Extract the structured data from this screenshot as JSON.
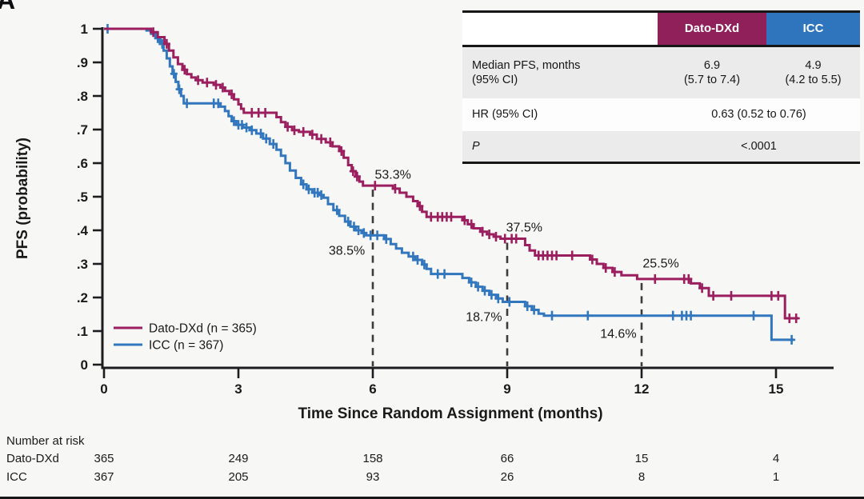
{
  "panel_label": "A",
  "colors": {
    "background": "#f7f7f6",
    "text": "#1a1a1a",
    "axis": "#1d1d1f",
    "dashed_line": "#3c3c3c",
    "dato_dxd": "#9B1E5F",
    "dato_dxd_label": "#A2215F",
    "icc": "#3277BE",
    "icc_label": "#4D8CD0",
    "table_header_dato_bg": "#8F2059",
    "table_header_icc_bg": "#2F75BD",
    "table_row_gray": "#EBEBEB",
    "table_border": "#161616"
  },
  "stats_table": {
    "header": {
      "dato": "Dato-DXd",
      "icc": "ICC"
    },
    "median_row": {
      "label_line1": "Median PFS, months",
      "label_line2": "(95% CI)",
      "dato_line1": "6.9",
      "dato_line2": "(5.7 to 7.4)",
      "icc_line1": "4.9",
      "icc_line2": "(4.2 to 5.5)"
    },
    "hr_row": {
      "label": "HR (95% CI)",
      "value": "0.63 (0.52 to 0.76)"
    },
    "p_row": {
      "label": "P",
      "value": "<.0001"
    }
  },
  "chart_data": {
    "type": "line",
    "subtype": "kaplan-meier-step",
    "title": "",
    "xlabel": "Time Since Random Assignment (months)",
    "ylabel": "PFS (probability)",
    "x_ticks": [
      0,
      3,
      6,
      9,
      12,
      15
    ],
    "y_tick_values": [
      0,
      0.1,
      0.2,
      0.3,
      0.4,
      0.5,
      0.6,
      0.7,
      0.8,
      0.9,
      1
    ],
    "y_tick_labels": [
      "0",
      ".1",
      ".2",
      ".3",
      ".4",
      ".5",
      ".6",
      ".7",
      ".8",
      ".9",
      "1"
    ],
    "xlim": [
      0,
      15.8
    ],
    "ylim": [
      0,
      1
    ],
    "grid": false,
    "legend_position": "lower-left",
    "series": [
      {
        "name": "Dato-DXd (n = 365)",
        "color_key": "dato_dxd",
        "label_color_key": "dato_dxd_label",
        "end_month": 15.5,
        "steps": [
          [
            0,
            1.0
          ],
          [
            1.05,
            0.99
          ],
          [
            1.2,
            0.975
          ],
          [
            1.35,
            0.955
          ],
          [
            1.45,
            0.935
          ],
          [
            1.55,
            0.915
          ],
          [
            1.65,
            0.895
          ],
          [
            1.75,
            0.878
          ],
          [
            1.85,
            0.865
          ],
          [
            1.95,
            0.855
          ],
          [
            2.05,
            0.847
          ],
          [
            2.2,
            0.84
          ],
          [
            2.45,
            0.833
          ],
          [
            2.6,
            0.825
          ],
          [
            2.7,
            0.815
          ],
          [
            2.8,
            0.805
          ],
          [
            2.9,
            0.79
          ],
          [
            3.0,
            0.775
          ],
          [
            3.06,
            0.762
          ],
          [
            3.12,
            0.75
          ],
          [
            3.85,
            0.737
          ],
          [
            3.95,
            0.722
          ],
          [
            4.05,
            0.708
          ],
          [
            4.2,
            0.698
          ],
          [
            4.35,
            0.693
          ],
          [
            4.6,
            0.685
          ],
          [
            4.75,
            0.672
          ],
          [
            4.95,
            0.662
          ],
          [
            5.1,
            0.65
          ],
          [
            5.25,
            0.636
          ],
          [
            5.35,
            0.616
          ],
          [
            5.45,
            0.594
          ],
          [
            5.53,
            0.576
          ],
          [
            5.62,
            0.56
          ],
          [
            5.7,
            0.545
          ],
          [
            5.78,
            0.533
          ],
          [
            6.45,
            0.524
          ],
          [
            6.6,
            0.512
          ],
          [
            6.75,
            0.5
          ],
          [
            6.9,
            0.487
          ],
          [
            7.0,
            0.472
          ],
          [
            7.1,
            0.455
          ],
          [
            7.2,
            0.44
          ],
          [
            8.0,
            0.43
          ],
          [
            8.12,
            0.418
          ],
          [
            8.25,
            0.406
          ],
          [
            8.4,
            0.396
          ],
          [
            8.55,
            0.388
          ],
          [
            8.7,
            0.381
          ],
          [
            8.85,
            0.375
          ],
          [
            9.4,
            0.356
          ],
          [
            9.5,
            0.34
          ],
          [
            9.62,
            0.325
          ],
          [
            10.85,
            0.313
          ],
          [
            11.0,
            0.3
          ],
          [
            11.15,
            0.288
          ],
          [
            11.35,
            0.276
          ],
          [
            11.55,
            0.266
          ],
          [
            11.9,
            0.255
          ],
          [
            13.1,
            0.242
          ],
          [
            13.3,
            0.228
          ],
          [
            13.5,
            0.205
          ],
          [
            15.2,
            0.138
          ]
        ],
        "censors": [
          [
            1.1,
            0.99
          ],
          [
            1.4,
            0.955
          ],
          [
            1.8,
            0.878
          ],
          [
            2.1,
            0.847
          ],
          [
            2.3,
            0.84
          ],
          [
            2.5,
            0.833
          ],
          [
            2.65,
            0.825
          ],
          [
            2.85,
            0.805
          ],
          [
            3.3,
            0.75
          ],
          [
            3.45,
            0.75
          ],
          [
            3.6,
            0.75
          ],
          [
            4.1,
            0.708
          ],
          [
            4.25,
            0.698
          ],
          [
            4.45,
            0.693
          ],
          [
            4.65,
            0.685
          ],
          [
            4.85,
            0.672
          ],
          [
            5.05,
            0.662
          ],
          [
            5.3,
            0.636
          ],
          [
            5.56,
            0.576
          ],
          [
            5.65,
            0.56
          ],
          [
            6.05,
            0.533
          ],
          [
            6.5,
            0.524
          ],
          [
            7.05,
            0.472
          ],
          [
            7.3,
            0.44
          ],
          [
            7.45,
            0.44
          ],
          [
            7.55,
            0.44
          ],
          [
            7.65,
            0.44
          ],
          [
            7.75,
            0.44
          ],
          [
            8.05,
            0.43
          ],
          [
            8.2,
            0.418
          ],
          [
            8.45,
            0.396
          ],
          [
            8.6,
            0.388
          ],
          [
            8.75,
            0.381
          ],
          [
            8.95,
            0.375
          ],
          [
            9.1,
            0.375
          ],
          [
            9.2,
            0.375
          ],
          [
            9.7,
            0.325
          ],
          [
            9.8,
            0.325
          ],
          [
            9.9,
            0.325
          ],
          [
            10.0,
            0.325
          ],
          [
            10.1,
            0.325
          ],
          [
            10.45,
            0.325
          ],
          [
            10.9,
            0.313
          ],
          [
            11.2,
            0.288
          ],
          [
            11.4,
            0.276
          ],
          [
            12.3,
            0.255
          ],
          [
            12.95,
            0.255
          ],
          [
            13.05,
            0.255
          ],
          [
            13.35,
            0.228
          ],
          [
            13.6,
            0.205
          ],
          [
            14.0,
            0.205
          ],
          [
            14.9,
            0.205
          ],
          [
            15.05,
            0.205
          ],
          [
            15.3,
            0.138
          ],
          [
            15.45,
            0.138
          ]
        ]
      },
      {
        "name": "ICC (n = 367)",
        "color_key": "icc",
        "label_color_key": "icc_label",
        "end_month": 15.4,
        "steps": [
          [
            0,
            1.0
          ],
          [
            0.95,
            0.995
          ],
          [
            1.05,
            0.985
          ],
          [
            1.15,
            0.972
          ],
          [
            1.25,
            0.955
          ],
          [
            1.33,
            0.935
          ],
          [
            1.4,
            0.912
          ],
          [
            1.47,
            0.888
          ],
          [
            1.53,
            0.866
          ],
          [
            1.6,
            0.842
          ],
          [
            1.66,
            0.82
          ],
          [
            1.72,
            0.8
          ],
          [
            1.78,
            0.778
          ],
          [
            2.6,
            0.768
          ],
          [
            2.7,
            0.755
          ],
          [
            2.78,
            0.74
          ],
          [
            2.85,
            0.725
          ],
          [
            2.95,
            0.714
          ],
          [
            3.1,
            0.706
          ],
          [
            3.25,
            0.698
          ],
          [
            3.4,
            0.688
          ],
          [
            3.55,
            0.673
          ],
          [
            3.7,
            0.657
          ],
          [
            3.85,
            0.64
          ],
          [
            3.95,
            0.622
          ],
          [
            4.05,
            0.6
          ],
          [
            4.15,
            0.578
          ],
          [
            4.28,
            0.556
          ],
          [
            4.4,
            0.537
          ],
          [
            4.52,
            0.522
          ],
          [
            4.65,
            0.512
          ],
          [
            4.8,
            0.505
          ],
          [
            4.9,
            0.497
          ],
          [
            5.0,
            0.478
          ],
          [
            5.12,
            0.46
          ],
          [
            5.25,
            0.443
          ],
          [
            5.38,
            0.426
          ],
          [
            5.5,
            0.411
          ],
          [
            5.62,
            0.4
          ],
          [
            5.75,
            0.392
          ],
          [
            5.85,
            0.385
          ],
          [
            6.25,
            0.374
          ],
          [
            6.4,
            0.359
          ],
          [
            6.52,
            0.346
          ],
          [
            6.65,
            0.333
          ],
          [
            6.8,
            0.322
          ],
          [
            6.95,
            0.312
          ],
          [
            7.1,
            0.298
          ],
          [
            7.2,
            0.285
          ],
          [
            7.3,
            0.27
          ],
          [
            8.0,
            0.258
          ],
          [
            8.15,
            0.245
          ],
          [
            8.3,
            0.232
          ],
          [
            8.45,
            0.22
          ],
          [
            8.6,
            0.208
          ],
          [
            8.75,
            0.197
          ],
          [
            8.9,
            0.187
          ],
          [
            9.4,
            0.174
          ],
          [
            9.55,
            0.163
          ],
          [
            9.7,
            0.152
          ],
          [
            9.82,
            0.146
          ],
          [
            14.9,
            0.074
          ]
        ],
        "censors": [
          [
            0.08,
            1.0
          ],
          [
            1.2,
            0.972
          ],
          [
            1.3,
            0.955
          ],
          [
            1.56,
            0.866
          ],
          [
            1.68,
            0.82
          ],
          [
            1.85,
            0.778
          ],
          [
            2.45,
            0.778
          ],
          [
            2.55,
            0.778
          ],
          [
            2.9,
            0.725
          ],
          [
            3.0,
            0.714
          ],
          [
            3.08,
            0.714
          ],
          [
            3.18,
            0.706
          ],
          [
            3.3,
            0.698
          ],
          [
            3.5,
            0.688
          ],
          [
            3.62,
            0.673
          ],
          [
            3.78,
            0.657
          ],
          [
            4.45,
            0.537
          ],
          [
            4.57,
            0.522
          ],
          [
            4.7,
            0.512
          ],
          [
            4.77,
            0.512
          ],
          [
            4.85,
            0.505
          ],
          [
            5.2,
            0.46
          ],
          [
            5.45,
            0.426
          ],
          [
            5.58,
            0.411
          ],
          [
            5.68,
            0.4
          ],
          [
            5.8,
            0.392
          ],
          [
            5.95,
            0.385
          ],
          [
            6.1,
            0.385
          ],
          [
            6.3,
            0.374
          ],
          [
            6.9,
            0.322
          ],
          [
            7.0,
            0.312
          ],
          [
            7.15,
            0.298
          ],
          [
            7.45,
            0.27
          ],
          [
            7.6,
            0.27
          ],
          [
            8.2,
            0.245
          ],
          [
            8.35,
            0.232
          ],
          [
            8.5,
            0.22
          ],
          [
            8.65,
            0.208
          ],
          [
            8.8,
            0.197
          ],
          [
            9.05,
            0.187
          ],
          [
            9.45,
            0.174
          ],
          [
            9.6,
            0.163
          ],
          [
            10.0,
            0.146
          ],
          [
            10.8,
            0.146
          ],
          [
            12.7,
            0.146
          ],
          [
            12.9,
            0.146
          ],
          [
            13.0,
            0.146
          ],
          [
            13.1,
            0.146
          ],
          [
            14.5,
            0.146
          ],
          [
            15.35,
            0.074
          ]
        ]
      }
    ],
    "dashed_markers": [
      {
        "month": 6,
        "top": 0.533
      },
      {
        "month": 9,
        "top": 0.375
      },
      {
        "month": 12,
        "top": 0.255
      }
    ],
    "annotations": [
      {
        "text": "53.3%",
        "series": 0,
        "month": 6.45,
        "p": 0.567
      },
      {
        "text": "37.5%",
        "series": 0,
        "month": 9.38,
        "p": 0.41
      },
      {
        "text": "25.5%",
        "series": 0,
        "month": 12.43,
        "p": 0.302
      },
      {
        "text": "38.5%",
        "series": 1,
        "month": 5.42,
        "p": 0.34
      },
      {
        "text": "18.7%",
        "series": 1,
        "month": 8.48,
        "p": 0.143
      },
      {
        "text": "14.6%",
        "series": 1,
        "month": 11.48,
        "p": 0.093
      }
    ]
  },
  "risk_table": {
    "title": "Number at risk",
    "time_points": [
      0,
      3,
      6,
      9,
      12,
      15
    ],
    "rows": [
      {
        "label": "Dato-DXd",
        "values": [
          "365",
          "249",
          "158",
          "66",
          "15",
          "4"
        ]
      },
      {
        "label": "ICC",
        "values": [
          "367",
          "205",
          "93",
          "26",
          "8",
          "1"
        ]
      }
    ]
  }
}
